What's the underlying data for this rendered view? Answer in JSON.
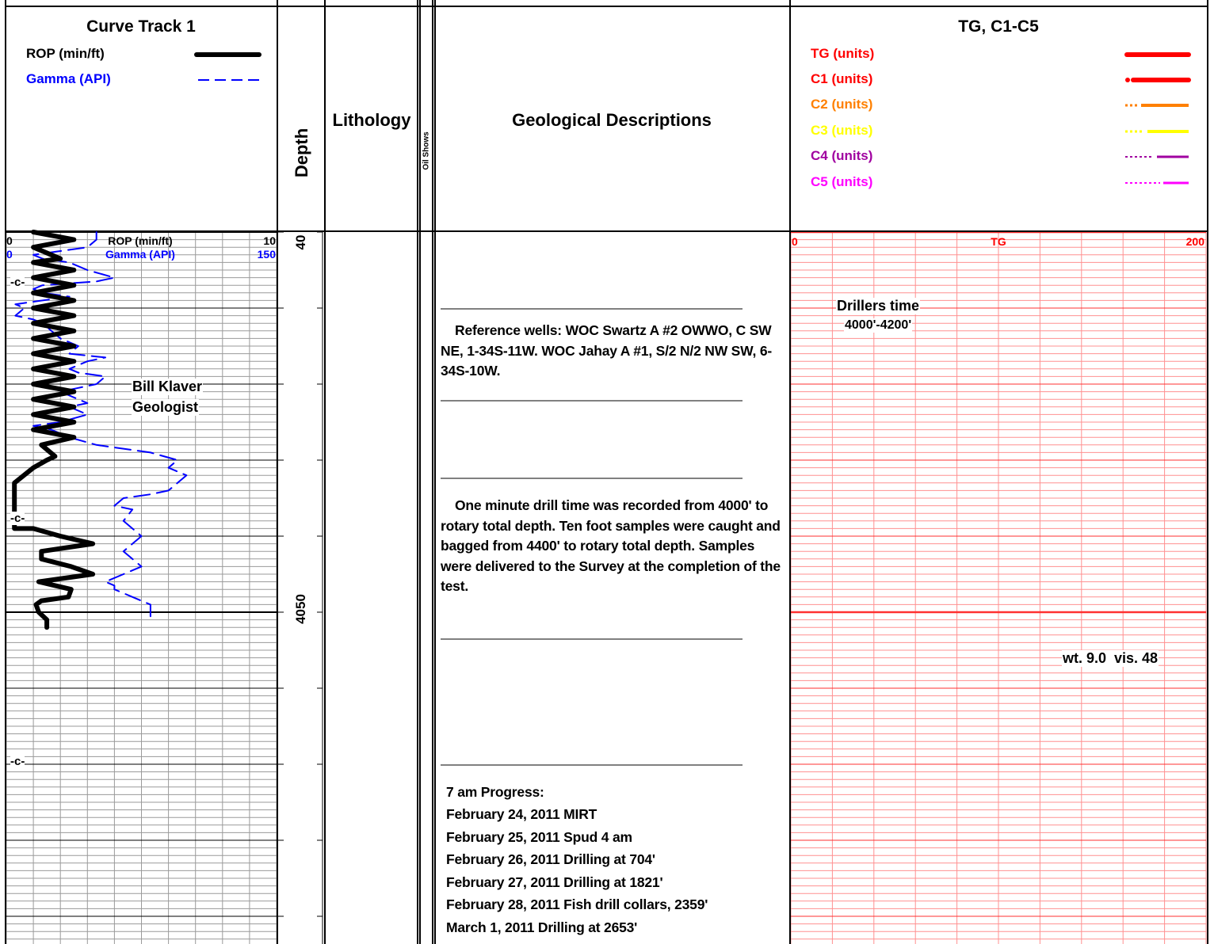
{
  "header": {
    "curve_track": {
      "title": "Curve Track 1",
      "legend": [
        {
          "label": "ROP (min/ft)",
          "color": "#000000",
          "style": "solid"
        },
        {
          "label": "Gamma (API)",
          "color": "#0000ff",
          "style": "dashed"
        }
      ]
    },
    "depth_label": "Depth",
    "lithology_label": "Lithology",
    "oil_shows_label": "Oil Shows",
    "geo_label": "Geological Descriptions",
    "gas_track": {
      "title": "TG, C1-C5",
      "legend": [
        {
          "label": "TG (units)",
          "color": "#ff0000"
        },
        {
          "label": "C1 (units)",
          "color": "#ff0000"
        },
        {
          "label": "C2 (units)",
          "color": "#ff8000"
        },
        {
          "label": "C3 (units)",
          "color": "#ffff00"
        },
        {
          "label": "C4 (units)",
          "color": "#a000a0"
        },
        {
          "label": "C5 (units)",
          "color": "#ff00ff"
        }
      ]
    }
  },
  "curve_scale": {
    "rop": {
      "label": "ROP (min/ft)",
      "min": "0",
      "max": "10"
    },
    "gamma": {
      "label": "Gamma (API)",
      "min": "0",
      "max": "150"
    }
  },
  "gas_scale": {
    "label": "TG",
    "min": "0",
    "max": "200"
  },
  "depth_marks": [
    {
      "label": "40",
      "depth": 4000
    },
    {
      "label": "4050",
      "depth": 4050
    }
  ],
  "core_marks": [
    {
      "label": "-c-",
      "depth": 4003
    },
    {
      "label": "-c-",
      "depth": 4019
    },
    {
      "label": "-c-",
      "depth": 4059
    }
  ],
  "annotations": {
    "geologist_name": "Bill Klaver",
    "geologist_title": "Geologist",
    "drillers_time": "Drillers time",
    "drillers_range": "4000'-4200'",
    "mud": "wt. 9.0  vis. 48"
  },
  "descriptions": {
    "reference": "Reference wells: WOC Swartz A #2 OWWO, C SW NE, 1-34S-11W. WOC Jahay A #1, S/2 N/2 NW SW, 6-34S-10W.",
    "drill_time": "One minute drill time was recorded from 4000' to rotary total depth. Ten foot samples were caught and bagged from 4400' to rotary total depth. Samples were delivered to the Survey at the completion of the test.",
    "progress_title": "7 am Progress:",
    "progress": [
      "February 24, 2011  MIRT",
      "February 25, 2011  Spud 4 am",
      "February 26, 2011  Drilling at 704'",
      "February 27, 2011  Drilling at 1821'",
      "February 28, 2011  Fish drill collars, 2359'",
      "March 1, 2011  Drilling at 2653'"
    ]
  },
  "chart_data": {
    "type": "line",
    "depth_axis": {
      "unit": "ft",
      "range": [
        4000,
        4076
      ]
    },
    "series": [
      {
        "name": "ROP (min/ft)",
        "color": "#000000",
        "scale": [
          0,
          10
        ],
        "points": [
          [
            1,
            4000
          ],
          [
            2.5,
            4001
          ],
          [
            1,
            4002
          ],
          [
            2,
            4003.5
          ],
          [
            1,
            4004
          ],
          [
            2.5,
            4005
          ],
          [
            1,
            4006
          ],
          [
            2.5,
            4007
          ],
          [
            1,
            4008
          ],
          [
            2.5,
            4009
          ],
          [
            1,
            4010
          ],
          [
            2.5,
            4011
          ],
          [
            1,
            4012
          ],
          [
            2.5,
            4013
          ],
          [
            1,
            4014
          ],
          [
            2.5,
            4015
          ],
          [
            1,
            4016
          ],
          [
            2.5,
            4017
          ],
          [
            1,
            4018
          ],
          [
            2.5,
            4019
          ],
          [
            1,
            4020
          ],
          [
            2.5,
            4021
          ],
          [
            1,
            4022
          ],
          [
            2.5,
            4023
          ],
          [
            1,
            4024
          ],
          [
            2.5,
            4025
          ],
          [
            1,
            4026
          ],
          [
            2.5,
            4027
          ],
          [
            1.3,
            4028
          ],
          [
            1.8,
            4029.5
          ],
          [
            1.5,
            4030
          ],
          [
            1,
            4031
          ],
          [
            0.3,
            4033
          ],
          [
            0.3,
            4035
          ],
          [
            0.3,
            4037
          ],
          [
            0.3,
            4039
          ],
          [
            1,
            4039
          ],
          [
            2,
            4040
          ],
          [
            3.2,
            4041
          ],
          [
            1.3,
            4042
          ],
          [
            1.3,
            4043
          ],
          [
            2.4,
            4044
          ],
          [
            3.2,
            4045
          ],
          [
            1.2,
            4046
          ],
          [
            2.4,
            4047
          ],
          [
            2.3,
            4048
          ],
          [
            1.3,
            4048.5
          ],
          [
            1.1,
            4049
          ],
          [
            1.2,
            4050
          ],
          [
            1.5,
            4051
          ],
          [
            1.5,
            4052
          ]
        ]
      },
      {
        "name": "Gamma (API)",
        "color": "#0000ff",
        "scale": [
          0,
          150
        ],
        "points": [
          [
            50,
            4000
          ],
          [
            50,
            4001
          ],
          [
            45,
            4002
          ],
          [
            30,
            4002.5
          ],
          [
            15,
            4003
          ],
          [
            20,
            4003.5
          ],
          [
            35,
            4004
          ],
          [
            45,
            4005
          ],
          [
            60,
            4006
          ],
          [
            50,
            4006.5
          ],
          [
            20,
            4007
          ],
          [
            15,
            4007.5
          ],
          [
            20,
            4008
          ],
          [
            35,
            4008.5
          ],
          [
            20,
            4009
          ],
          [
            5,
            4009.5
          ],
          [
            10,
            4010
          ],
          [
            5,
            4011
          ],
          [
            15,
            4011.5
          ],
          [
            20,
            4012
          ],
          [
            25,
            4013
          ],
          [
            30,
            4014
          ],
          [
            40,
            4015
          ],
          [
            35,
            4016
          ],
          [
            55,
            4016.5
          ],
          [
            45,
            4017
          ],
          [
            35,
            4018
          ],
          [
            40,
            4018.5
          ],
          [
            55,
            4019
          ],
          [
            50,
            4020
          ],
          [
            40,
            4020.5
          ],
          [
            30,
            4021
          ],
          [
            40,
            4022
          ],
          [
            45,
            4022.5
          ],
          [
            35,
            4023
          ],
          [
            45,
            4024
          ],
          [
            30,
            4025
          ],
          [
            15,
            4025.5
          ],
          [
            25,
            4026
          ],
          [
            35,
            4027
          ],
          [
            50,
            4028
          ],
          [
            80,
            4029
          ],
          [
            95,
            4030
          ],
          [
            90,
            4031
          ],
          [
            100,
            4032
          ],
          [
            95,
            4033
          ],
          [
            90,
            4034
          ],
          [
            80,
            4034.5
          ],
          [
            65,
            4035
          ],
          [
            60,
            4036
          ],
          [
            70,
            4036.5
          ],
          [
            65,
            4038
          ],
          [
            70,
            4039
          ],
          [
            75,
            4040
          ],
          [
            70,
            4041
          ],
          [
            65,
            4042
          ],
          [
            70,
            4043
          ],
          [
            75,
            4044
          ],
          [
            70,
            4044.5
          ],
          [
            65,
            4045
          ],
          [
            55,
            4046
          ],
          [
            60,
            4046.5
          ],
          [
            60,
            4047
          ],
          [
            65,
            4047.5
          ],
          [
            70,
            4048
          ],
          [
            75,
            4048.5
          ],
          [
            80,
            4049
          ],
          [
            80,
            4051
          ]
        ]
      }
    ]
  }
}
